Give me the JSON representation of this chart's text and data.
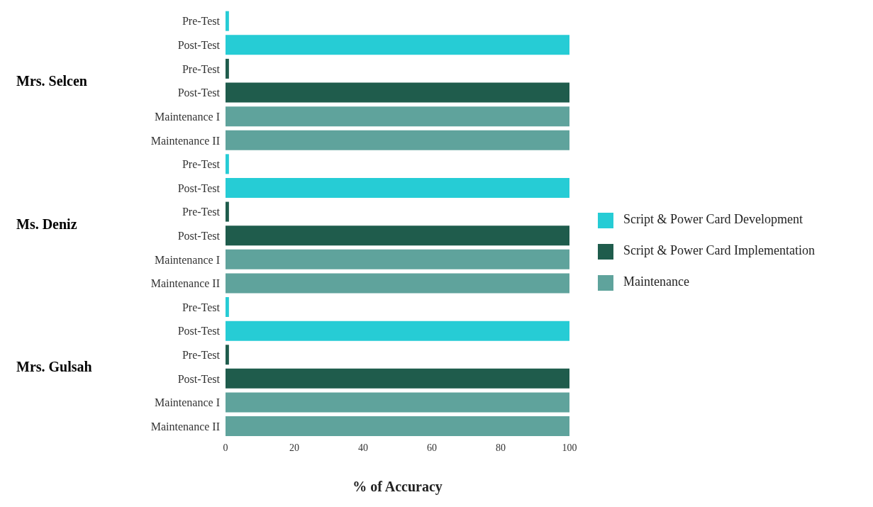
{
  "chart_data": {
    "type": "bar",
    "orientation": "horizontal",
    "stacked": true,
    "categories": [
      "Pre-Test",
      "Post-Test",
      "Pre-Test",
      "Post-Test",
      "Maintenance I",
      "Maintenance II",
      "Pre-Test",
      "Post-Test",
      "Pre-Test",
      "Post-Test",
      "Maintenance I",
      "Maintenance II",
      "Pre-Test",
      "Post-Test",
      "Pre-Test",
      "Post-Test",
      "Maintenance I",
      "Maintenance II"
    ],
    "series": [
      {
        "name": "Script & Power Card Development",
        "color": "#26ccd5",
        "values": [
          1,
          100,
          null,
          null,
          null,
          null,
          1,
          100,
          null,
          null,
          null,
          null,
          1,
          100,
          null,
          null,
          null,
          null
        ]
      },
      {
        "name": "Script & Power Card Implementation",
        "color": "#1f5c4c",
        "values": [
          null,
          null,
          1,
          100,
          null,
          null,
          null,
          null,
          1,
          100,
          null,
          null,
          null,
          null,
          1,
          100,
          null,
          null
        ]
      },
      {
        "name": "Maintenance",
        "color": "#5fa39c",
        "values": [
          null,
          null,
          null,
          null,
          100,
          100,
          null,
          null,
          null,
          null,
          100,
          100,
          null,
          null,
          null,
          null,
          100,
          100
        ]
      }
    ],
    "xlim": [
      0,
      100
    ],
    "xticks": [
      0,
      20,
      40,
      60,
      80,
      100
    ],
    "xlabel": "% of Accuracy",
    "annotations": [
      "Mrs. Selcen",
      "Ms. Deniz",
      "Mrs. Gulsah"
    ],
    "legend": "right"
  }
}
